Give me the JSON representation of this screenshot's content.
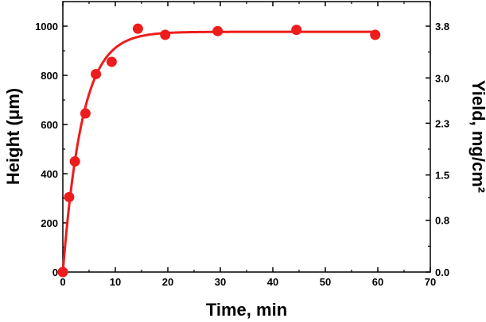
{
  "chart_data": {
    "type": "scatter",
    "xlabel": "Time, min",
    "ylabel_left": "Height (μm)",
    "ylabel_right": "Yield, mg/cm²",
    "xlim": [
      0,
      70
    ],
    "ylim_left": [
      0,
      1100
    ],
    "ylim_right": [
      0,
      4.18
    ],
    "x_ticks": [
      0,
      10,
      20,
      30,
      40,
      50,
      60,
      70
    ],
    "y_ticks_left": [
      0,
      200,
      400,
      600,
      800,
      1000
    ],
    "y_ticks_right": [
      "0.0",
      "0.8",
      "1.5",
      "2.3",
      "3.0",
      "3.8"
    ],
    "grid": false,
    "color": "#ee1c1c",
    "series": [
      {
        "kind": "points",
        "x": [
          0,
          1.2,
          2.3,
          4.3,
          6.3,
          9.3,
          14.3,
          19.5,
          29.5,
          44.5,
          59.5
        ],
        "y": [
          0,
          305,
          450,
          645,
          805,
          855,
          990,
          965,
          980,
          985,
          965
        ]
      },
      {
        "kind": "fit-curve",
        "model": "y = 977 * (1 - exp(-x / 3.7))"
      }
    ]
  }
}
